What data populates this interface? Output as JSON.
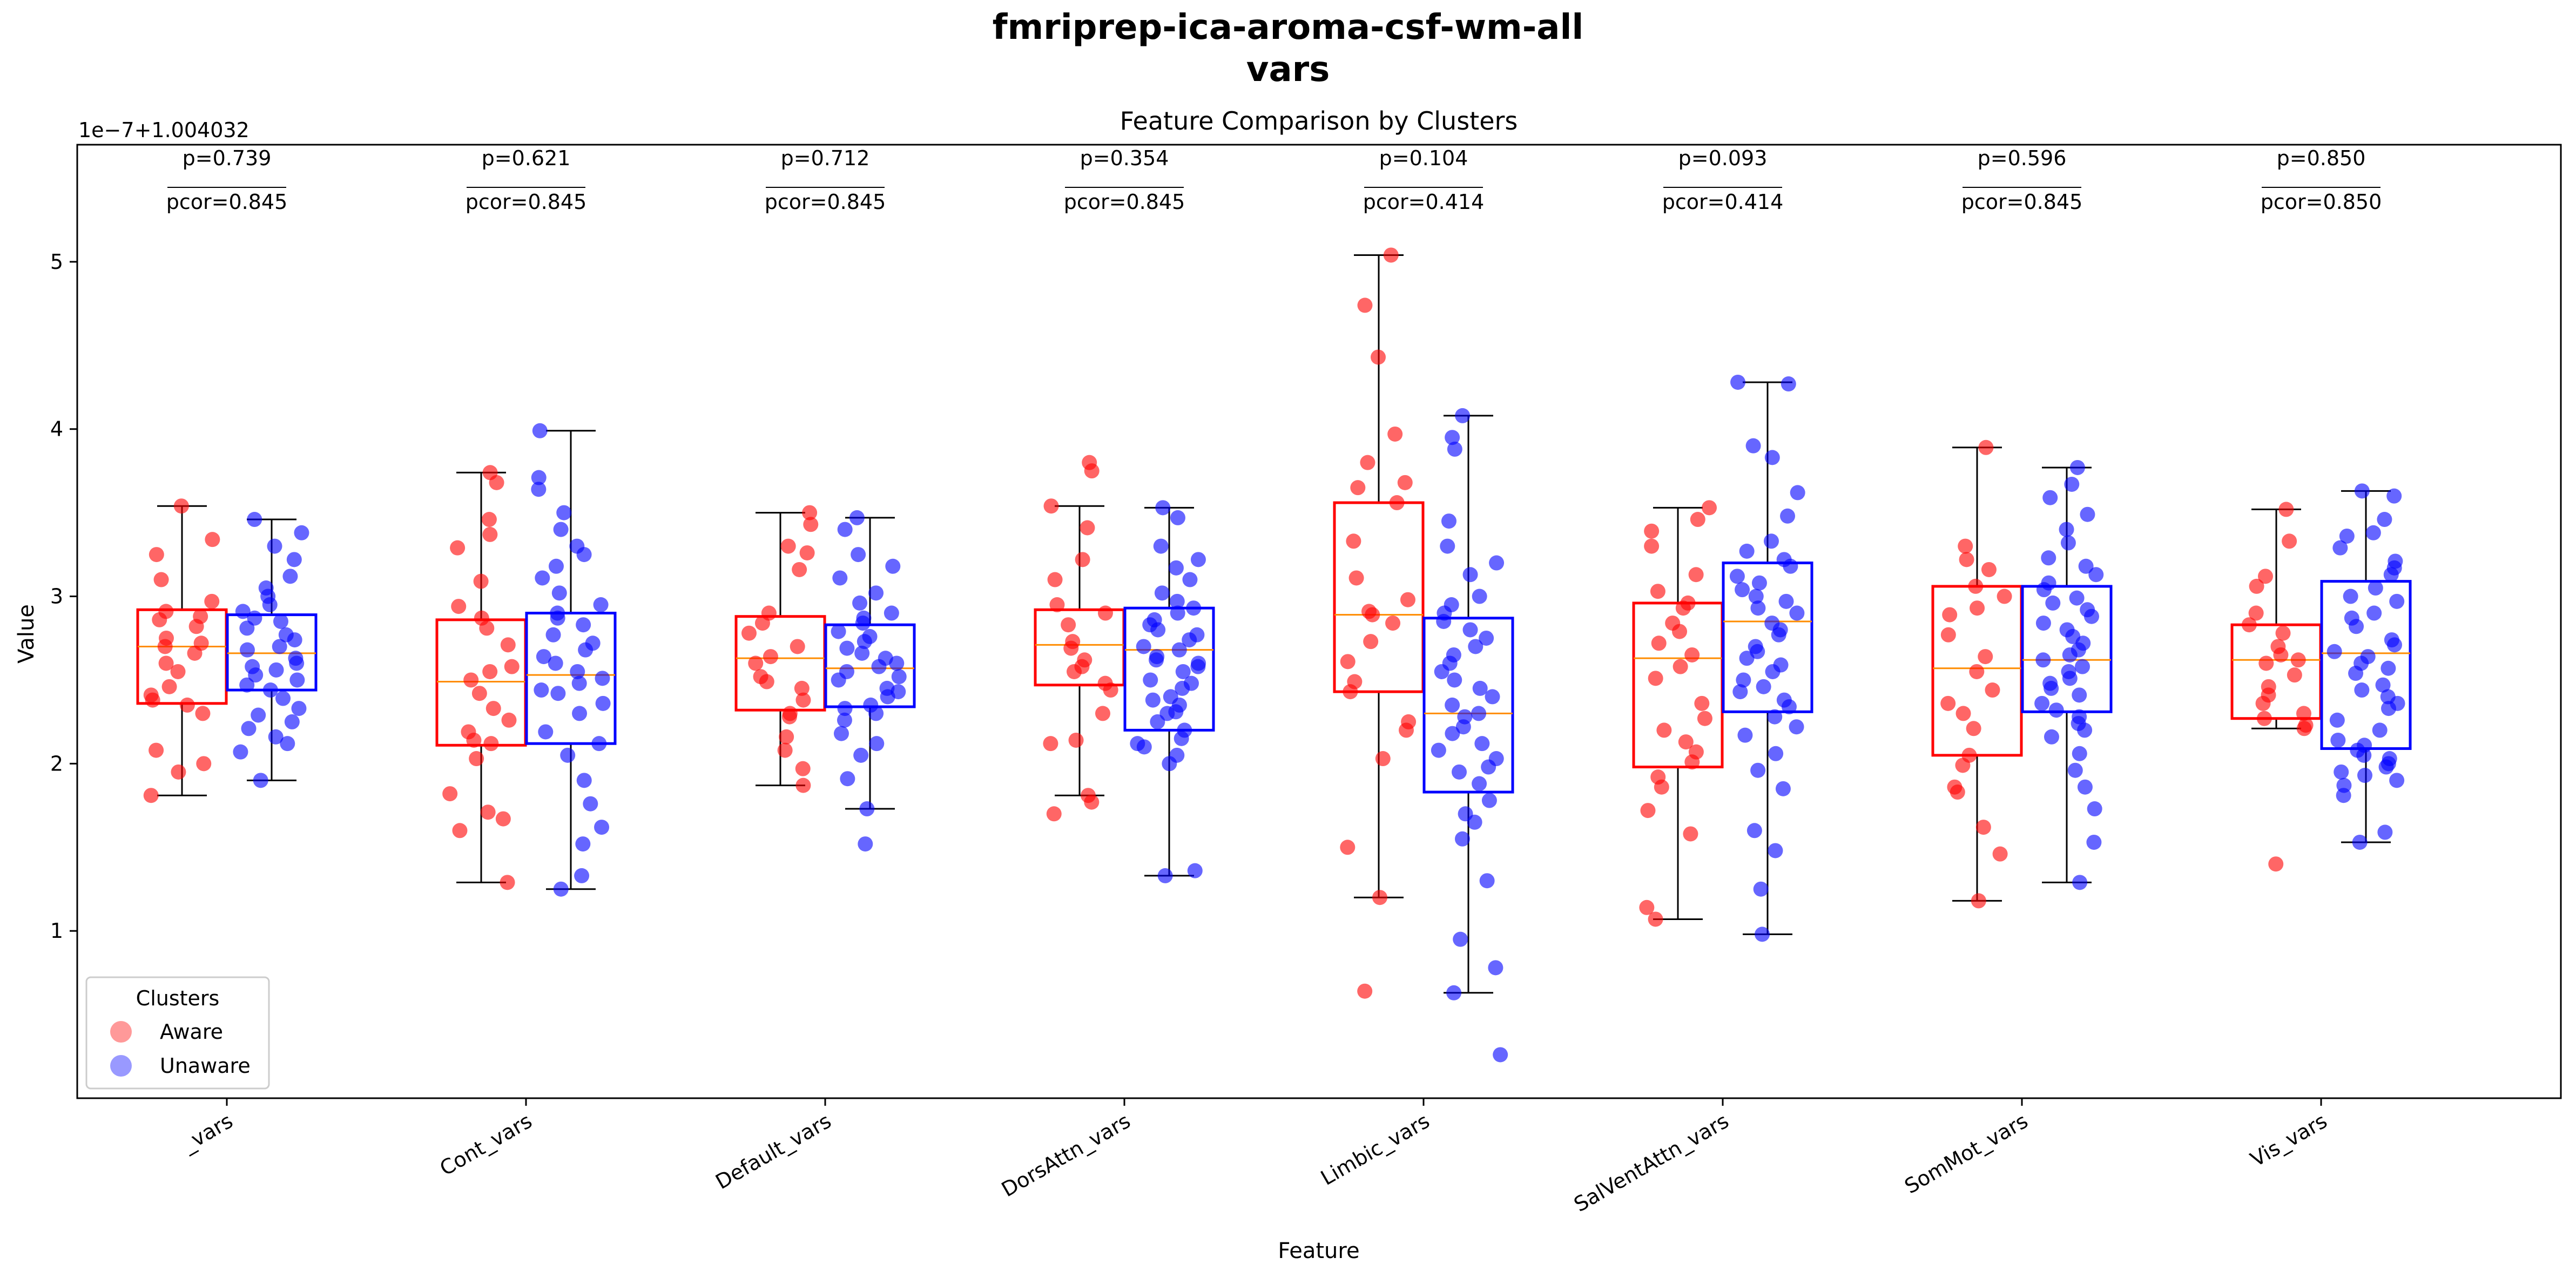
{
  "figure": {
    "suptitle_line1": "fmriprep-ica-aroma-csf-wm-all",
    "suptitle_line2": "vars"
  },
  "chart_data": {
    "type": "box",
    "title": "Feature Comparison by Clusters",
    "xlabel": "Feature",
    "ylabel": "Value",
    "offset_text": "1e−7+1.004032",
    "ylim": [
      0,
      5.7
    ],
    "yticks": [
      1,
      2,
      3,
      4,
      5
    ],
    "grid": false,
    "legend": {
      "title": "Clusters",
      "position": "lower-left",
      "entries": [
        "Aware",
        "Unaware"
      ]
    },
    "colors": {
      "Aware": "#ff0000",
      "Unaware": "#0000ff",
      "median": "#ff8c00"
    },
    "categories": [
      "_vars",
      "Cont_vars",
      "Default_vars",
      "DorsAttn_vars",
      "Limbic_vars",
      "SalVentAttn_vars",
      "SomMot_vars",
      "Vis_vars"
    ],
    "p_values": [
      "p=0.739",
      "p=0.621",
      "p=0.712",
      "p=0.354",
      "p=0.104",
      "p=0.093",
      "p=0.596",
      "p=0.850"
    ],
    "pcor_values": [
      "pcor=0.845",
      "pcor=0.845",
      "pcor=0.845",
      "pcor=0.845",
      "pcor=0.414",
      "pcor=0.414",
      "pcor=0.845",
      "pcor=0.850"
    ],
    "series": [
      {
        "name": "Aware",
        "boxes": [
          {
            "whislo": 1.81,
            "q1": 2.36,
            "med": 2.7,
            "q3": 2.92,
            "whishi": 3.54
          },
          {
            "whislo": 1.29,
            "q1": 2.11,
            "med": 2.49,
            "q3": 2.86,
            "whishi": 3.74
          },
          {
            "whislo": 1.87,
            "q1": 2.32,
            "med": 2.63,
            "q3": 2.88,
            "whishi": 3.5
          },
          {
            "whislo": 1.81,
            "q1": 2.47,
            "med": 2.71,
            "q3": 2.92,
            "whishi": 3.54
          },
          {
            "whislo": 1.2,
            "q1": 2.43,
            "med": 2.89,
            "q3": 3.56,
            "whishi": 5.04
          },
          {
            "whislo": 1.07,
            "q1": 1.98,
            "med": 2.63,
            "q3": 2.96,
            "whishi": 3.53
          },
          {
            "whislo": 1.18,
            "q1": 2.05,
            "med": 2.57,
            "q3": 3.06,
            "whishi": 3.89
          },
          {
            "whislo": 2.21,
            "q1": 2.27,
            "med": 2.62,
            "q3": 2.83,
            "whishi": 3.52
          }
        ],
        "points": [
          [
            2.55,
            3.54,
            2.7,
            1.81,
            3.1,
            2.38,
            2.97,
            2.91,
            2.75,
            2.46,
            2.82,
            2.0,
            3.34,
            1.95,
            2.35,
            2.66,
            2.08,
            3.25,
            2.41,
            2.86,
            2.72,
            2.6,
            2.3,
            2.88
          ],
          [
            3.74,
            1.29,
            2.12,
            1.6,
            3.68,
            2.55,
            3.29,
            2.87,
            1.82,
            2.26,
            3.09,
            2.58,
            1.71,
            3.37,
            2.19,
            1.67,
            2.42,
            2.03,
            2.71,
            2.94,
            2.5,
            2.33,
            2.14,
            3.46,
            2.81
          ],
          [
            3.5,
            1.87,
            2.64,
            3.3,
            1.97,
            2.52,
            2.45,
            3.26,
            2.16,
            2.78,
            2.9,
            2.3,
            2.6,
            2.38,
            3.43,
            2.08,
            2.7,
            2.28,
            2.49,
            3.16,
            2.84
          ],
          [
            3.8,
            1.7,
            3.75,
            2.14,
            2.55,
            1.81,
            3.1,
            2.9,
            2.44,
            2.69,
            3.54,
            2.12,
            2.83,
            2.3,
            3.41,
            2.62,
            1.77,
            2.48,
            2.95,
            2.73,
            3.22,
            2.58
          ],
          [
            5.04,
            0.64,
            1.2,
            4.74,
            4.43,
            1.5,
            3.97,
            2.03,
            3.8,
            3.68,
            3.11,
            2.2,
            2.43,
            2.89,
            3.56,
            2.61,
            2.98,
            2.73,
            3.33,
            2.25,
            2.84,
            3.65,
            2.49,
            2.91
          ],
          [
            1.07,
            3.53,
            1.14,
            1.72,
            3.46,
            3.3,
            2.96,
            1.86,
            2.13,
            2.79,
            1.58,
            2.36,
            3.13,
            2.51,
            2.01,
            3.03,
            2.2,
            2.65,
            1.92,
            2.84,
            3.39,
            2.27,
            2.93,
            2.07,
            2.72,
            2.58
          ],
          [
            3.89,
            1.18,
            1.46,
            3.3,
            1.62,
            2.05,
            3.22,
            1.86,
            2.93,
            2.36,
            3.06,
            2.21,
            2.64,
            3.16,
            1.99,
            2.89,
            2.44,
            3.0,
            2.3,
            2.55,
            1.83,
            2.77
          ],
          [
            3.52,
            1.4,
            3.33,
            2.21,
            2.62,
            2.83,
            2.27,
            3.06,
            2.46,
            2.7,
            2.36,
            2.6,
            3.12,
            2.3,
            2.53,
            2.65,
            2.23,
            2.78,
            2.9,
            2.41
          ]
        ]
      },
      {
        "name": "Unaware",
        "boxes": [
          {
            "whislo": 1.9,
            "q1": 2.44,
            "med": 2.66,
            "q3": 2.89,
            "whishi": 3.46
          },
          {
            "whislo": 1.25,
            "q1": 2.12,
            "med": 2.53,
            "q3": 2.9,
            "whishi": 3.99
          },
          {
            "whislo": 1.73,
            "q1": 2.34,
            "med": 2.57,
            "q3": 2.83,
            "whishi": 3.47
          },
          {
            "whislo": 1.33,
            "q1": 2.2,
            "med": 2.68,
            "q3": 2.93,
            "whishi": 3.53
          },
          {
            "whislo": 0.63,
            "q1": 1.83,
            "med": 2.3,
            "q3": 2.87,
            "whishi": 4.08
          },
          {
            "whislo": 0.98,
            "q1": 2.31,
            "med": 2.85,
            "q3": 3.2,
            "whishi": 4.28
          },
          {
            "whislo": 1.29,
            "q1": 2.31,
            "med": 2.62,
            "q3": 3.06,
            "whishi": 3.77
          },
          {
            "whislo": 1.53,
            "q1": 2.09,
            "med": 2.66,
            "q3": 3.09,
            "whishi": 3.63
          }
        ],
        "points": [
          [
            3.46,
            1.9,
            2.07,
            3.38,
            2.25,
            2.87,
            2.6,
            3.05,
            2.44,
            2.12,
            2.74,
            2.95,
            2.53,
            3.22,
            2.33,
            2.68,
            2.81,
            2.16,
            2.47,
            3.0,
            2.58,
            2.91,
            2.39,
            2.77,
            2.63,
            3.12,
            2.21,
            2.7,
            2.5,
            2.85,
            3.3,
            2.29,
            2.56
          ],
          [
            3.99,
            1.25,
            3.71,
            1.33,
            3.64,
            1.52,
            3.5,
            1.76,
            3.3,
            2.05,
            3.11,
            2.19,
            2.9,
            2.42,
            2.72,
            2.55,
            2.87,
            2.3,
            3.02,
            2.64,
            2.48,
            2.83,
            2.36,
            3.18,
            2.6,
            1.9,
            3.4,
            2.12,
            2.77,
            2.51,
            1.62,
            2.95,
            2.68,
            2.44,
            3.25
          ],
          [
            3.47,
            1.52,
            1.73,
            3.4,
            1.91,
            3.25,
            2.05,
            3.11,
            2.26,
            2.96,
            2.35,
            2.84,
            2.45,
            2.73,
            2.55,
            2.63,
            2.79,
            2.4,
            2.9,
            2.5,
            2.69,
            2.18,
            3.02,
            2.3,
            2.6,
            2.87,
            2.43,
            2.66,
            2.12,
            2.76,
            2.52,
            3.18,
            2.33,
            2.58
          ],
          [
            3.53,
            1.33,
            1.36,
            3.47,
            2.0,
            3.3,
            2.1,
            3.17,
            2.2,
            3.02,
            2.3,
            2.93,
            2.4,
            2.8,
            2.5,
            2.7,
            2.6,
            2.15,
            2.86,
            2.35,
            2.74,
            2.45,
            2.64,
            2.05,
            2.97,
            2.25,
            2.55,
            3.1,
            2.68,
            2.38,
            2.9,
            2.48,
            2.77,
            2.58,
            3.22,
            2.12,
            2.83,
            2.31,
            2.62
          ],
          [
            4.08,
            0.26,
            0.63,
            3.95,
            0.78,
            3.88,
            0.95,
            3.45,
            1.3,
            3.3,
            1.55,
            3.13,
            1.65,
            3.0,
            1.78,
            2.9,
            1.88,
            2.8,
            1.98,
            2.7,
            2.08,
            2.6,
            2.18,
            2.5,
            2.28,
            2.4,
            2.12,
            2.85,
            2.35,
            2.65,
            1.95,
            2.45,
            2.22,
            2.75,
            2.03,
            2.55,
            1.7,
            2.95,
            2.3,
            3.2
          ],
          [
            4.28,
            0.98,
            4.27,
            1.25,
            3.9,
            1.48,
            3.83,
            1.6,
            3.62,
            1.85,
            3.48,
            1.96,
            3.33,
            2.06,
            3.22,
            2.17,
            3.12,
            2.28,
            3.04,
            2.38,
            2.97,
            2.46,
            2.9,
            2.55,
            2.84,
            2.63,
            2.77,
            2.7,
            3.08,
            2.5,
            3.18,
            2.34,
            2.93,
            2.59,
            3.27,
            2.43,
            2.8,
            2.67,
            3.0,
            2.22
          ],
          [
            3.77,
            1.29,
            1.53,
            3.67,
            1.73,
            3.59,
            1.86,
            3.49,
            1.96,
            3.4,
            2.06,
            3.32,
            2.16,
            3.23,
            2.24,
            3.13,
            2.32,
            3.04,
            2.41,
            2.96,
            2.48,
            2.88,
            2.55,
            2.8,
            2.62,
            2.72,
            2.68,
            2.45,
            2.92,
            2.28,
            3.08,
            2.58,
            2.76,
            2.36,
            2.99,
            2.51,
            2.84,
            2.2,
            3.18,
            2.65
          ],
          [
            3.63,
            1.53,
            1.59,
            3.6,
            1.81,
            3.46,
            1.87,
            3.38,
            1.93,
            3.29,
            1.98,
            3.21,
            2.03,
            3.13,
            2.08,
            3.05,
            2.14,
            2.97,
            2.2,
            2.9,
            2.26,
            2.82,
            2.33,
            2.74,
            2.4,
            2.67,
            2.47,
            2.6,
            2.54,
            2.0,
            2.87,
            1.9,
            3.0,
            2.11,
            2.71,
            2.36,
            3.17,
            1.95,
            2.57,
            2.44,
            3.36,
            2.05,
            2.64
          ]
        ]
      }
    ]
  }
}
